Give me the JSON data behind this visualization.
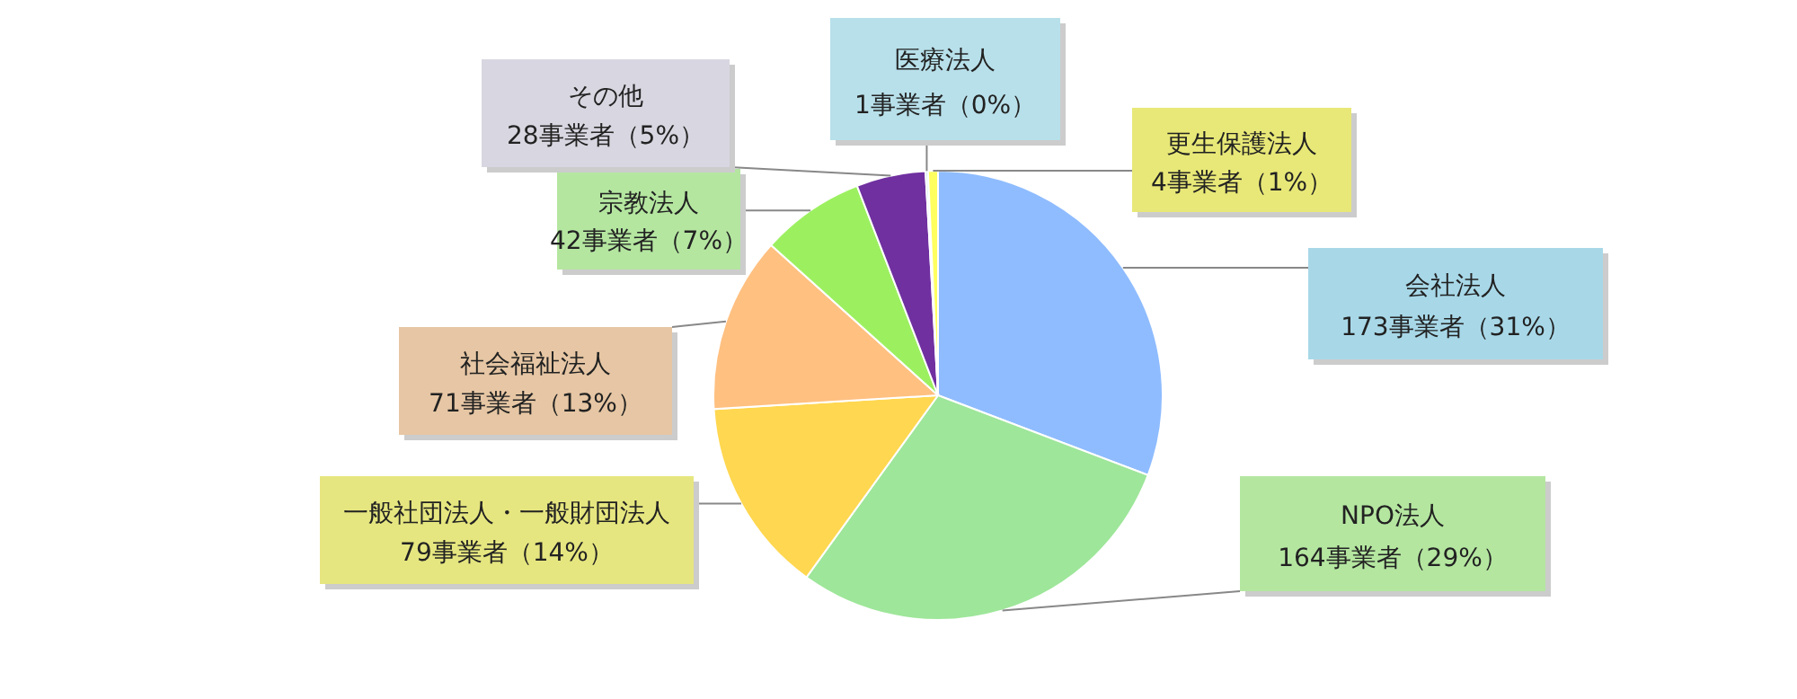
{
  "chart_data": {
    "type": "pie",
    "categories": [
      "会社法人",
      "NPO法人",
      "一般社団法人・一般財団法人",
      "社会福祉法人",
      "宗教法人",
      "その他",
      "医療法人",
      "更生保護法人"
    ],
    "values": [
      173,
      164,
      79,
      71,
      42,
      28,
      1,
      4
    ],
    "colors": [
      "#8fbcff",
      "#9ee69a",
      "#ffd750",
      "#ffc080",
      "#9cf060",
      "#7030a0",
      "#c8e4f0",
      "#ffff60"
    ],
    "value_labels": [
      "173事業者（31%）",
      "164事業者（29%）",
      "79事業者（14%）",
      "71事業者（13%）",
      "42事業者（7%）",
      "28事業者（5%）",
      "1事業者（0%）",
      "4事業者（1%）"
    ]
  }
}
